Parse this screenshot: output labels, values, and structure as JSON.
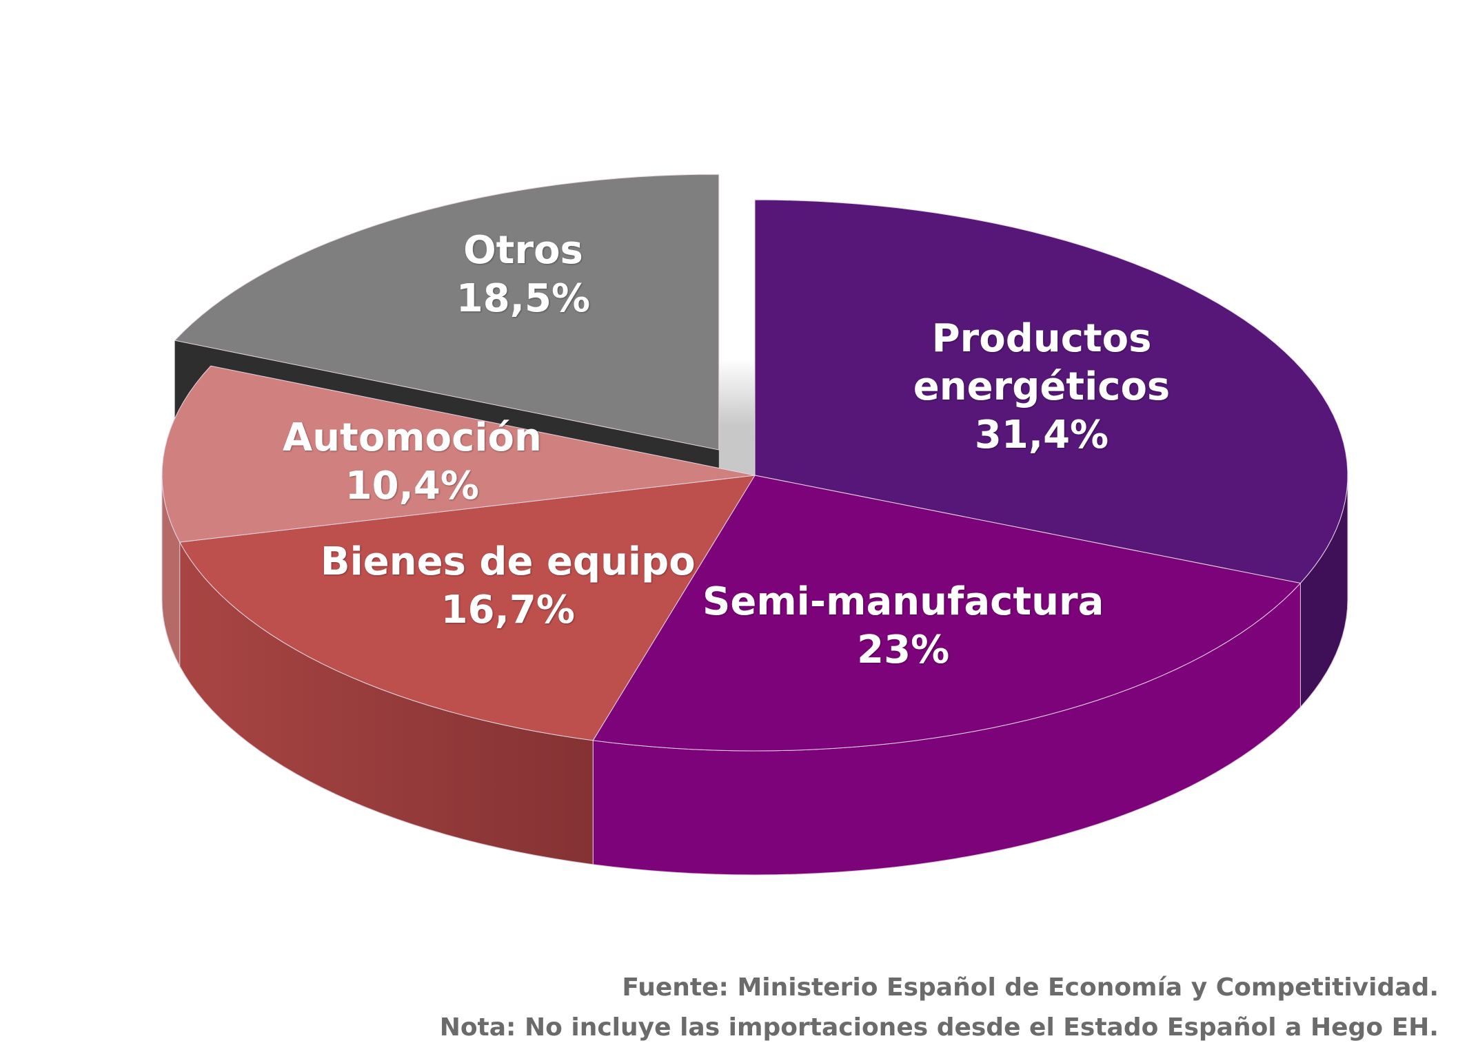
{
  "chart_data": {
    "type": "pie",
    "style": "3d-exploded",
    "slices": [
      {
        "name": "Productos energéticos",
        "name_lines": [
          "Productos",
          "energéticos"
        ],
        "value": 31.4,
        "value_label": "31,4%",
        "color": "#561778",
        "side_color": "#3f1057"
      },
      {
        "name": "Semi-manufactura",
        "name_lines": [
          "Semi-manufactura"
        ],
        "value": 23,
        "value_label": "23%",
        "color": "#7c037a",
        "side_color": "#7c037a"
      },
      {
        "name": "Bienes de equipo",
        "name_lines": [
          "Bienes de equipo"
        ],
        "value": 16.7,
        "value_label": "16,7%",
        "color": "#bd4f4d",
        "side_color": "#9a3e3c"
      },
      {
        "name": "Automoción",
        "name_lines": [
          "Automoción"
        ],
        "value": 10.4,
        "value_label": "10,4%",
        "color": "#d0807e",
        "side_color": "#b56a68"
      },
      {
        "name": "Otros",
        "name_lines": [
          "Otros"
        ],
        "value": 18.5,
        "value_label": "18,5%",
        "color": "#7f7f7f",
        "side_color": "#2e2e2e"
      }
    ],
    "legend": "none"
  },
  "footnotes": {
    "source": "Fuente: Ministerio Español de Economía y Competitividad.",
    "note": "Nota: No incluye las importaciones desde el Estado Español a Hego EH."
  }
}
